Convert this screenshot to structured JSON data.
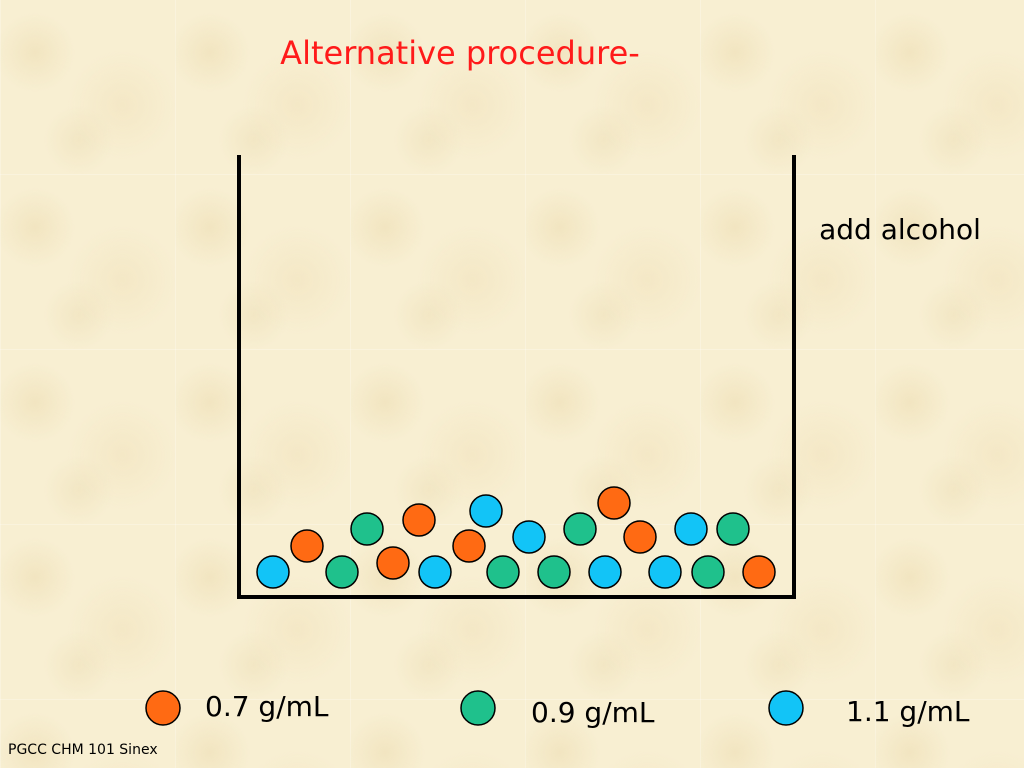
{
  "slide": {
    "title": "Alternative procedure-",
    "instruction": "add alcohol",
    "footer": "PGCC CHM 101 Sinex"
  },
  "colors": {
    "orange": "#ff6a13",
    "green": "#1fc18c",
    "blue": "#12c4f7",
    "title": "#ff1a1a"
  },
  "legend": [
    {
      "color_key": "orange",
      "label": "0.7 g/mL"
    },
    {
      "color_key": "green",
      "label": "0.9 g/mL"
    },
    {
      "color_key": "blue",
      "label": "1.1 g/mL"
    }
  ]
}
